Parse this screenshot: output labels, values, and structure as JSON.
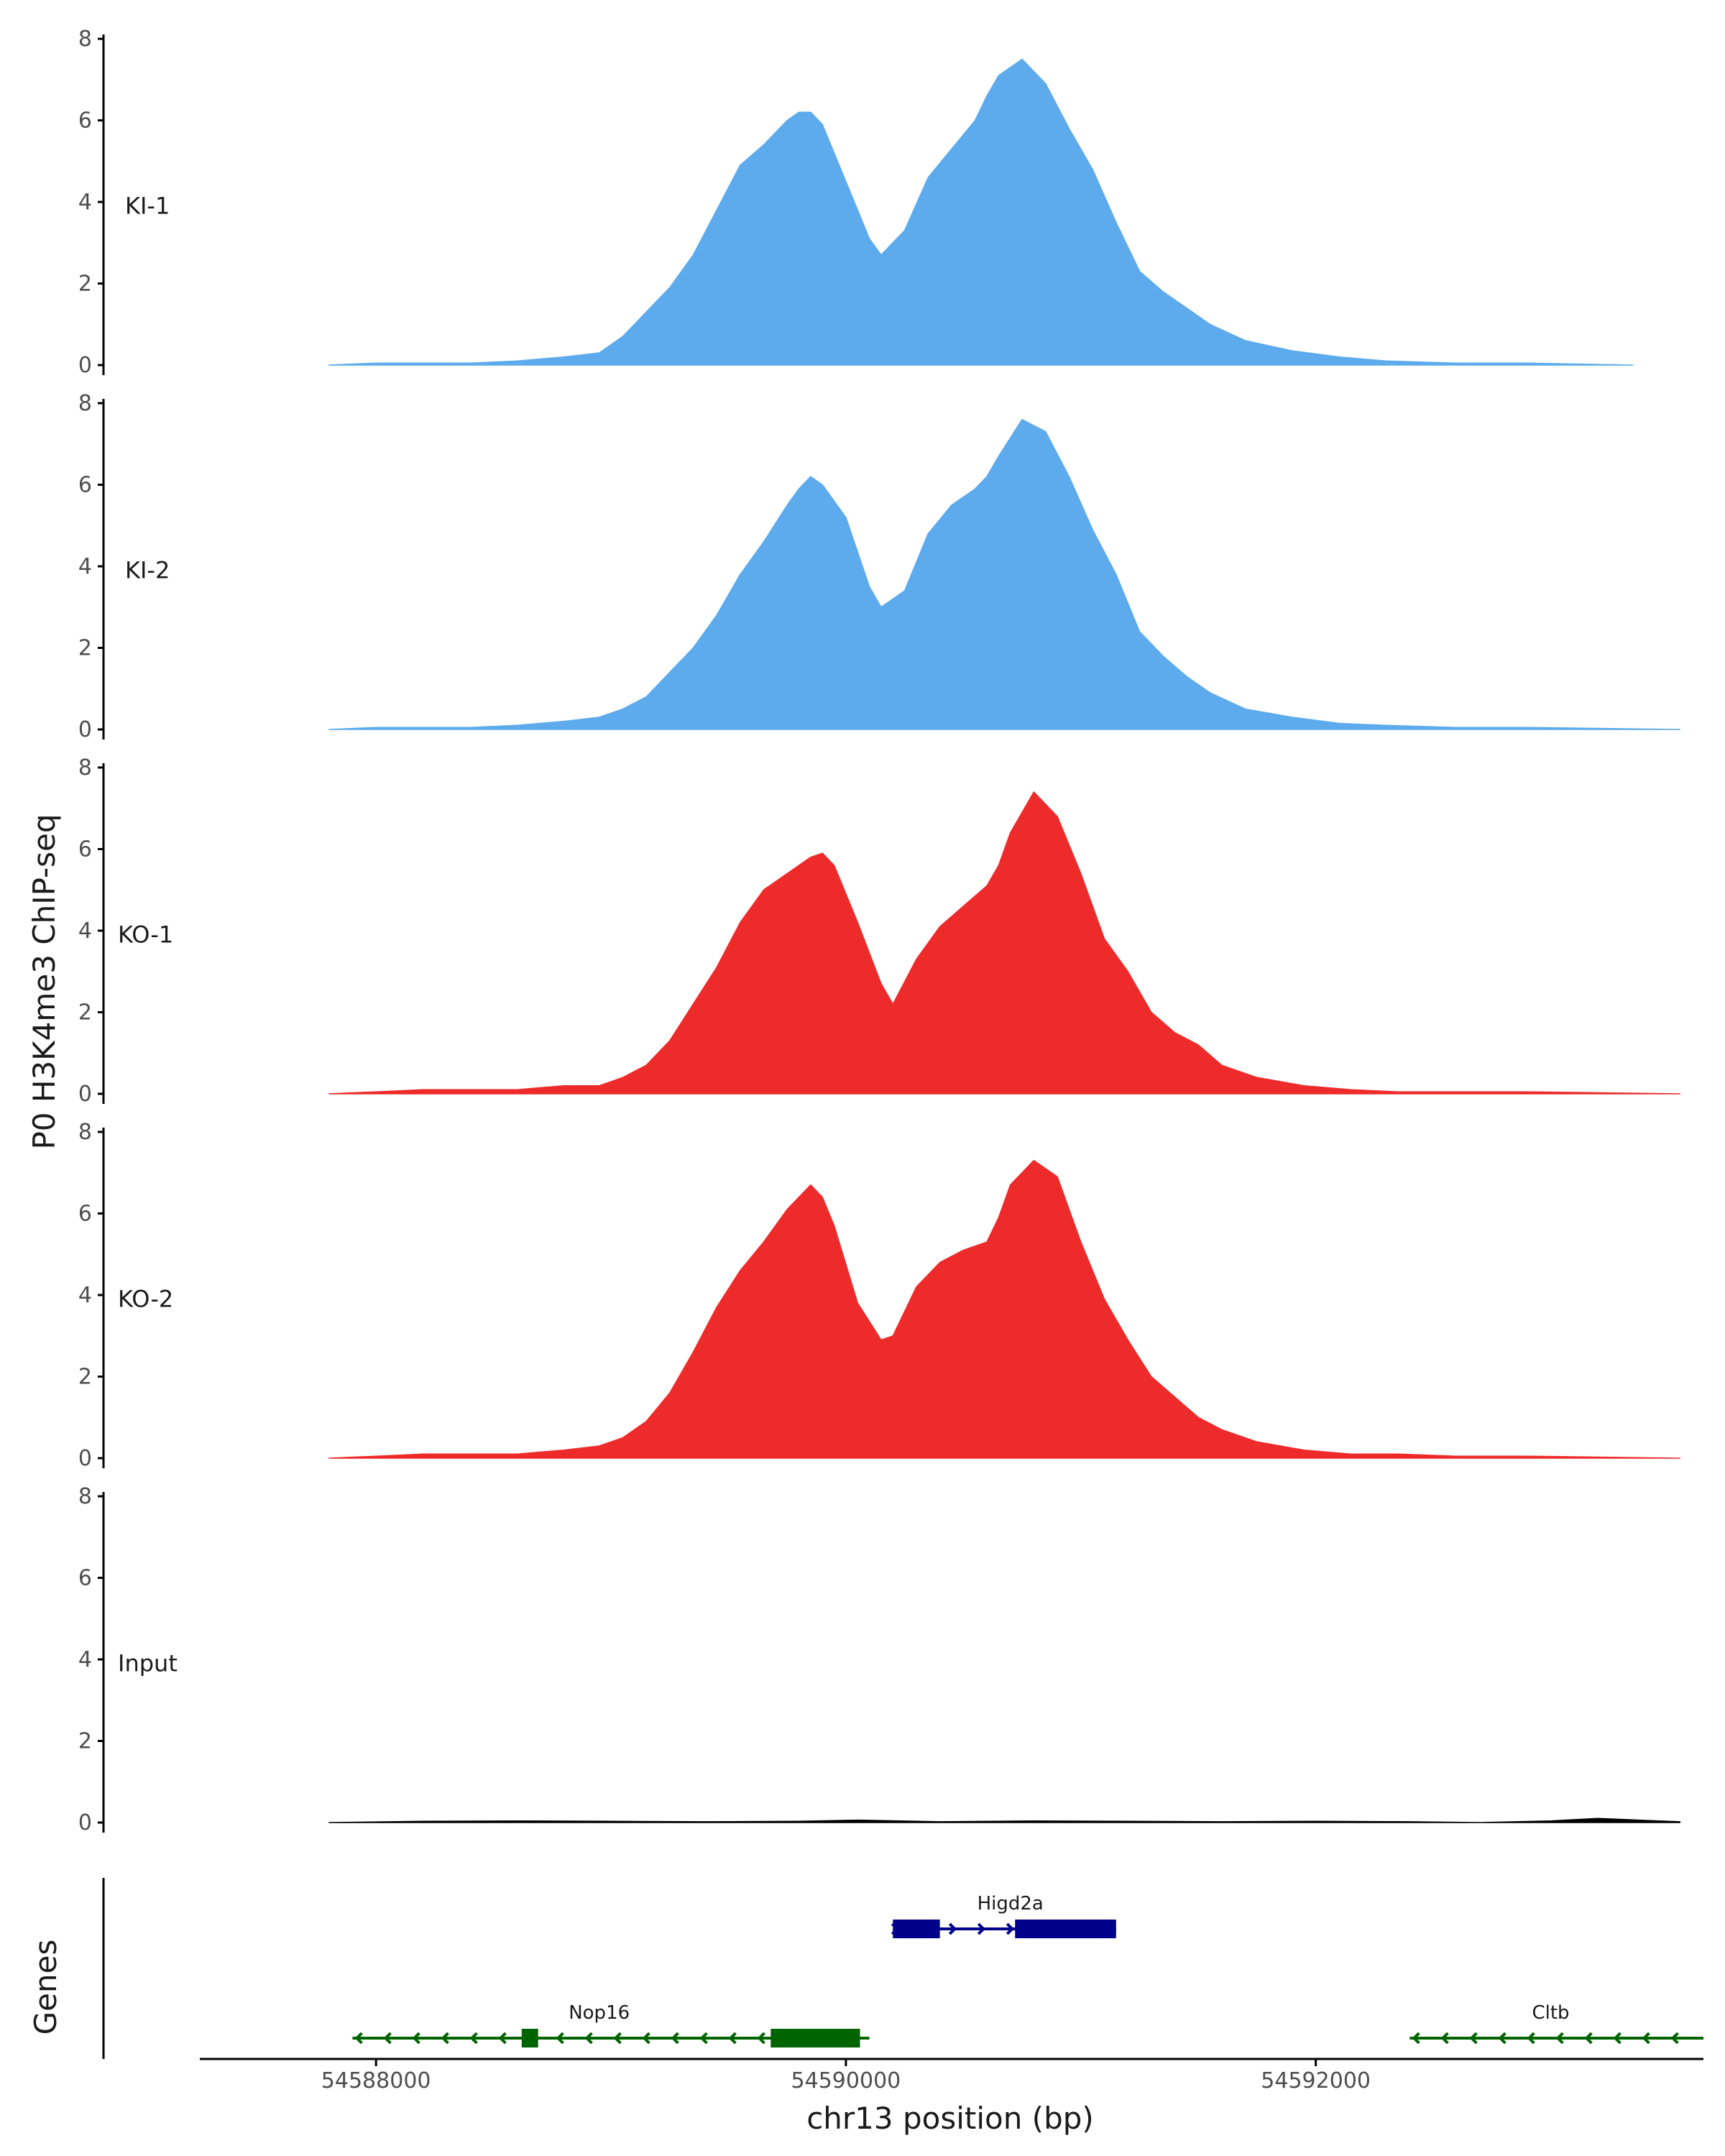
{
  "chart_data": {
    "type": "area",
    "title": "",
    "ylabel": "P0 H3K4me3 ChIP-seq",
    "xlabel": "chr13 position (bp)",
    "xlim": [
      54587250,
      54593650
    ],
    "ylim": [
      0,
      8
    ],
    "y_ticks": [
      "0",
      "2",
      "4",
      "6",
      "8"
    ],
    "x_ticks": [
      {
        "value": 54588000,
        "label": "54588000"
      },
      {
        "value": 54590000,
        "label": "54590000"
      },
      {
        "value": 54592000,
        "label": "54592000"
      }
    ],
    "tracks": [
      {
        "name": "KI-1",
        "color": "#5DABEC",
        "x_range": [
          54587800,
          54593350
        ],
        "x": [
          54587800,
          54588000,
          54588200,
          54588400,
          54588600,
          54588800,
          54588950,
          54589050,
          54589150,
          54589250,
          54589350,
          54589450,
          54589550,
          54589650,
          54589750,
          54589800,
          54589850,
          54589900,
          54590000,
          54590100,
          54590150,
          54590250,
          54590350,
          54590450,
          54590550,
          54590600,
          54590650,
          54590750,
          54590850,
          54590950,
          54591050,
          54591150,
          54591250,
          54591350,
          54591450,
          54591550,
          54591700,
          54591900,
          54592100,
          54592300,
          54592600,
          54592900,
          54593350
        ],
        "values": [
          0.0,
          0.05,
          0.05,
          0.05,
          0.1,
          0.2,
          0.3,
          0.7,
          1.3,
          1.9,
          2.7,
          3.8,
          4.9,
          5.4,
          6.0,
          6.2,
          6.2,
          5.9,
          4.5,
          3.1,
          2.7,
          3.3,
          4.6,
          5.3,
          6.0,
          6.6,
          7.1,
          7.5,
          6.9,
          5.8,
          4.8,
          3.5,
          2.3,
          1.8,
          1.4,
          1.0,
          0.6,
          0.35,
          0.2,
          0.1,
          0.05,
          0.05,
          0.0
        ]
      },
      {
        "name": "KI-2",
        "color": "#5DABEC",
        "x_range": [
          54587800,
          54593550
        ],
        "x": [
          54587800,
          54588000,
          54588200,
          54588400,
          54588600,
          54588800,
          54588950,
          54589050,
          54589150,
          54589250,
          54589350,
          54589450,
          54589550,
          54589650,
          54589750,
          54589800,
          54589850,
          54589900,
          54590000,
          54590100,
          54590150,
          54590250,
          54590350,
          54590450,
          54590550,
          54590600,
          54590650,
          54590750,
          54590850,
          54590950,
          54591050,
          54591150,
          54591250,
          54591350,
          54591450,
          54591550,
          54591700,
          54591900,
          54592100,
          54592300,
          54592600,
          54592900,
          54593550
        ],
        "values": [
          0.0,
          0.05,
          0.05,
          0.05,
          0.1,
          0.2,
          0.3,
          0.5,
          0.8,
          1.4,
          2.0,
          2.8,
          3.8,
          4.6,
          5.5,
          5.9,
          6.2,
          6.0,
          5.2,
          3.5,
          3.0,
          3.4,
          4.8,
          5.5,
          5.9,
          6.2,
          6.7,
          7.6,
          7.3,
          6.2,
          4.9,
          3.8,
          2.4,
          1.8,
          1.3,
          0.9,
          0.5,
          0.3,
          0.15,
          0.1,
          0.05,
          0.05,
          0.0
        ]
      },
      {
        "name": "KO-1",
        "color": "#EE2B2B",
        "x_range": [
          54587800,
          54593550
        ],
        "x": [
          54587800,
          54588000,
          54588200,
          54588400,
          54588600,
          54588800,
          54588950,
          54589050,
          54589150,
          54589250,
          54589350,
          54589450,
          54589550,
          54589650,
          54589750,
          54589850,
          54589900,
          54589950,
          54590050,
          54590150,
          54590200,
          54590300,
          54590400,
          54590500,
          54590600,
          54590650,
          54590700,
          54590800,
          54590900,
          54591000,
          54591100,
          54591200,
          54591300,
          54591400,
          54591500,
          54591600,
          54591750,
          54591950,
          54592150,
          54592350,
          54592600,
          54592900,
          54593550
        ],
        "values": [
          0.0,
          0.05,
          0.1,
          0.1,
          0.1,
          0.2,
          0.2,
          0.4,
          0.7,
          1.3,
          2.2,
          3.1,
          4.2,
          5.0,
          5.4,
          5.8,
          5.9,
          5.6,
          4.2,
          2.7,
          2.2,
          3.3,
          4.1,
          4.6,
          5.1,
          5.6,
          6.4,
          7.4,
          6.8,
          5.4,
          3.8,
          3.0,
          2.0,
          1.5,
          1.2,
          0.7,
          0.4,
          0.2,
          0.1,
          0.05,
          0.05,
          0.05,
          0.0
        ]
      },
      {
        "name": "KO-2",
        "color": "#EE2B2B",
        "x_range": [
          54587800,
          54593550
        ],
        "x": [
          54587800,
          54588000,
          54588200,
          54588400,
          54588600,
          54588800,
          54588950,
          54589050,
          54589150,
          54589250,
          54589350,
          54589450,
          54589550,
          54589650,
          54589750,
          54589850,
          54589900,
          54589950,
          54590050,
          54590150,
          54590200,
          54590300,
          54590400,
          54590500,
          54590600,
          54590650,
          54590700,
          54590800,
          54590900,
          54591000,
          54591100,
          54591200,
          54591300,
          54591400,
          54591500,
          54591600,
          54591750,
          54591950,
          54592150,
          54592350,
          54592600,
          54592900,
          54593550
        ],
        "values": [
          0.0,
          0.05,
          0.1,
          0.1,
          0.1,
          0.2,
          0.3,
          0.5,
          0.9,
          1.6,
          2.6,
          3.7,
          4.6,
          5.3,
          6.1,
          6.7,
          6.4,
          5.7,
          3.8,
          2.9,
          3.0,
          4.2,
          4.8,
          5.1,
          5.3,
          5.9,
          6.7,
          7.3,
          6.9,
          5.3,
          3.9,
          2.9,
          2.0,
          1.5,
          1.0,
          0.7,
          0.4,
          0.2,
          0.1,
          0.1,
          0.05,
          0.05,
          0.0
        ]
      },
      {
        "name": "Input",
        "color": "#000000",
        "x_range": [
          54587800,
          54593550
        ],
        "x": [
          54587800,
          54588200,
          54588600,
          54589000,
          54589400,
          54589800,
          54590050,
          54590400,
          54590800,
          54591200,
          54591600,
          54592000,
          54592400,
          54592700,
          54593000,
          54593200,
          54593550
        ],
        "values": [
          0.0,
          0.03,
          0.04,
          0.03,
          0.02,
          0.03,
          0.06,
          0.02,
          0.04,
          0.03,
          0.02,
          0.03,
          0.02,
          0.0,
          0.04,
          0.1,
          0.02
        ]
      }
    ],
    "genes_track_label": "Genes",
    "genes": [
      {
        "name": "Higd2a",
        "color": "#00008B",
        "row": 0,
        "strand": "+",
        "start": 54590200,
        "end": 54591150,
        "exons": [
          [
            54590200,
            54590400
          ],
          [
            54590720,
            54591150
          ]
        ]
      },
      {
        "name": "Nop16",
        "color": "#006400",
        "row": 1,
        "strand": "-",
        "start": 54587900,
        "end": 54590100,
        "exons": [
          [
            54588620,
            54588690
          ],
          [
            54589680,
            54590060
          ]
        ]
      },
      {
        "name": "Cltb",
        "color": "#006400",
        "row": 1,
        "strand": "-",
        "start": 54592400,
        "end": 54593650,
        "exons": []
      }
    ]
  }
}
